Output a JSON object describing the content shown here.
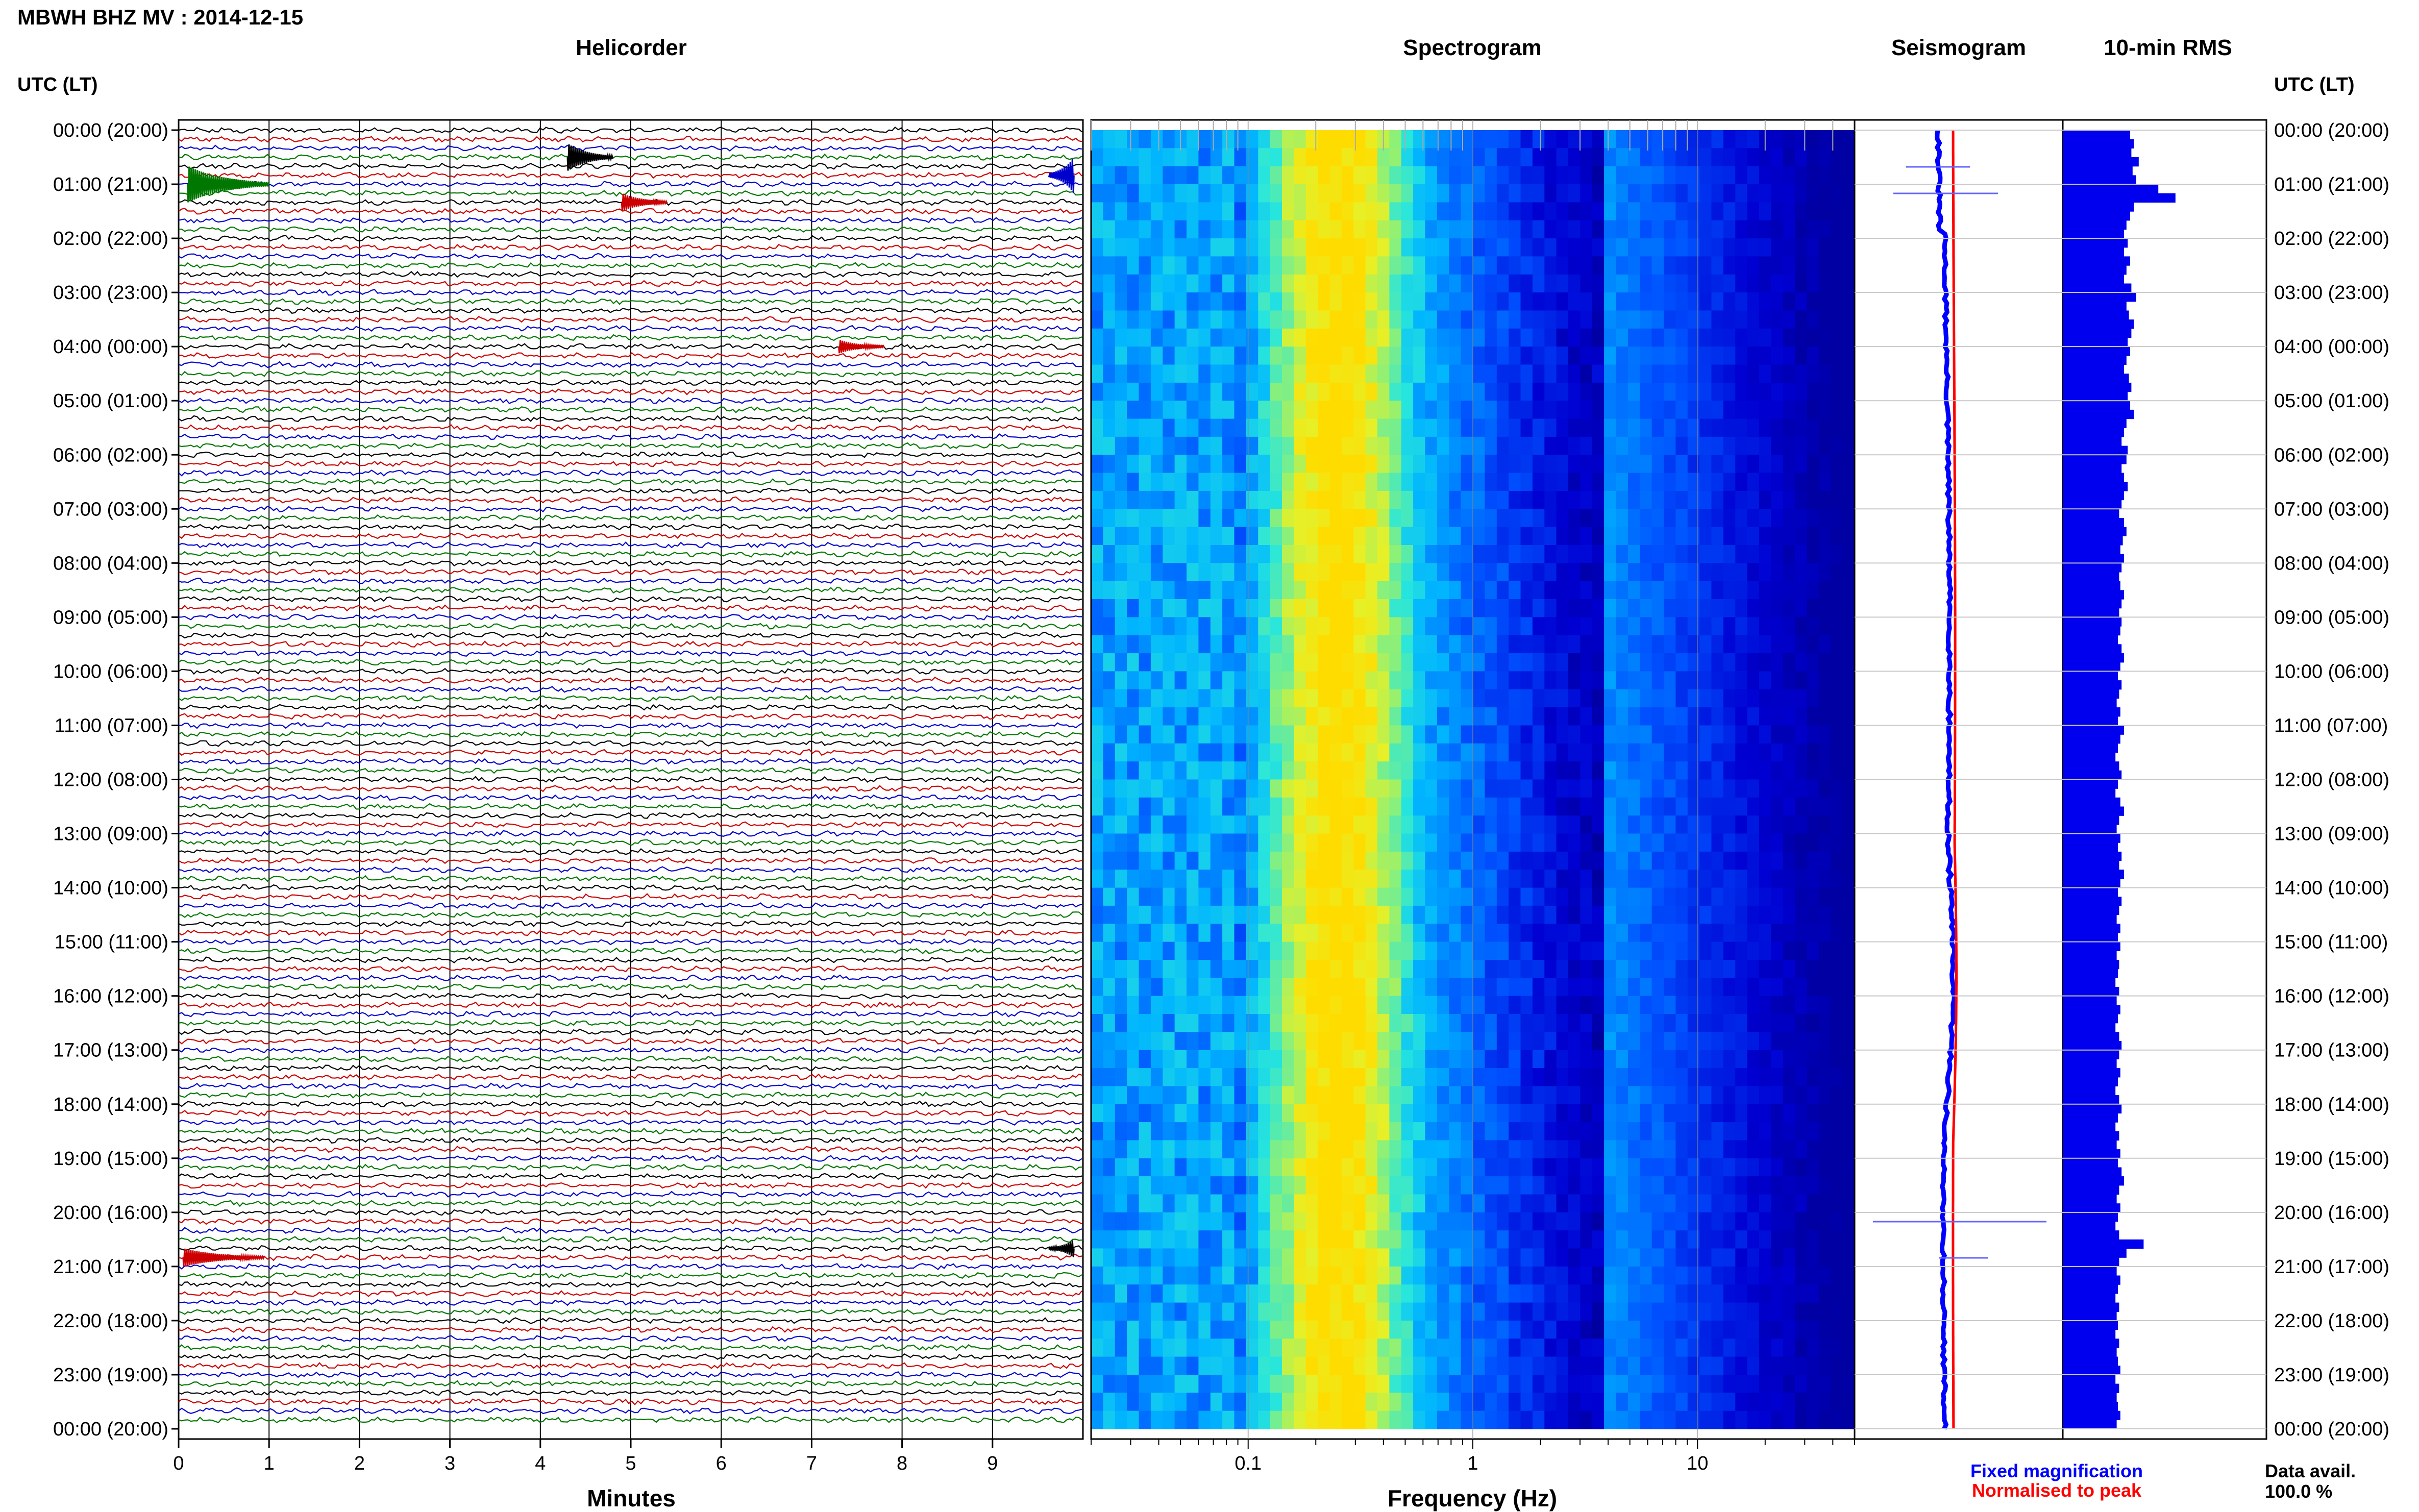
{
  "header": {
    "title": "MBWH BHZ MV : 2014-12-15",
    "utc_label_left": "UTC (LT)",
    "utc_label_right": "UTC (LT)"
  },
  "panels": {
    "helicorder": "Helicorder",
    "spectrogram": "Spectrogram",
    "seismogram": "Seismogram",
    "rms": "10-min RMS"
  },
  "hour_labels": [
    "00:00 (20:00)",
    "01:00 (21:00)",
    "02:00 (22:00)",
    "03:00 (23:00)",
    "04:00 (00:00)",
    "05:00 (01:00)",
    "06:00 (02:00)",
    "07:00 (03:00)",
    "08:00 (04:00)",
    "09:00 (05:00)",
    "10:00 (06:00)",
    "11:00 (07:00)",
    "12:00 (08:00)",
    "13:00 (09:00)",
    "14:00 (10:00)",
    "15:00 (11:00)",
    "16:00 (12:00)",
    "17:00 (13:00)",
    "18:00 (14:00)",
    "19:00 (15:00)",
    "20:00 (16:00)",
    "21:00 (17:00)",
    "22:00 (18:00)",
    "23:00 (19:00)",
    "00:00 (20:00)"
  ],
  "helicorder_axis": {
    "xlabel": "Minutes",
    "ticks": [
      "0",
      "1",
      "2",
      "3",
      "4",
      "5",
      "6",
      "7",
      "8",
      "9"
    ]
  },
  "spectrogram_axis": {
    "xlabel": "Frequency (Hz)",
    "ticks": [
      "0.1",
      "1",
      "10"
    ]
  },
  "legend": {
    "fixed": "Fixed magnification",
    "normalised": "Normalised to peak",
    "fixed_color": "#0000ff",
    "normalised_color": "#ff0000"
  },
  "data_avail": {
    "label": "Data avail.",
    "value": "100.0 %"
  },
  "colors": {
    "trace_cycle": [
      "#000000",
      "#cc0000",
      "#0000cc",
      "#007700"
    ],
    "rms_bar": "#0000ee",
    "grid": "#c8c8c8"
  },
  "chart_data": [
    {
      "type": "line",
      "name": "helicorder",
      "title": "Helicorder",
      "xlabel": "Minutes",
      "xlim": [
        0,
        10
      ],
      "rows": 144,
      "row_minutes": 10,
      "events": [
        {
          "row": 3,
          "minute": 4.3,
          "color": "#000000",
          "amp": 3
        },
        {
          "row": 6,
          "minute": 0.1,
          "color": "#007700",
          "amp": 4
        },
        {
          "row": 5,
          "minute": 9.9,
          "color": "#0000cc",
          "amp": 4
        },
        {
          "row": 8,
          "minute": 4.9,
          "color": "#cc0000",
          "amp": 2
        },
        {
          "row": 24,
          "minute": 7.3,
          "color": "#cc0000",
          "amp": 1.5
        },
        {
          "row": 125,
          "minute": 0.05,
          "color": "#cc0000",
          "amp": 2
        },
        {
          "row": 124,
          "minute": 9.9,
          "color": "#000000",
          "amp": 2
        }
      ]
    },
    {
      "type": "heatmap",
      "name": "spectrogram",
      "title": "Spectrogram",
      "xlabel": "Frequency (Hz)",
      "xscale": "log",
      "xlim": [
        0.02,
        50
      ],
      "peak_frequency_hz": 0.25
    },
    {
      "type": "line",
      "name": "seismogram",
      "title": "Seismogram",
      "series": [
        {
          "name": "Fixed magnification",
          "color": "#0000ff"
        },
        {
          "name": "Normalised to peak",
          "color": "#ff0000"
        }
      ]
    },
    {
      "type": "bar",
      "name": "rms",
      "title": "10-min RMS",
      "values": [
        0.55,
        0.58,
        0.56,
        0.62,
        0.57,
        0.6,
        0.78,
        0.92,
        0.58,
        0.55,
        0.52,
        0.5,
        0.53,
        0.5,
        0.55,
        0.52,
        0.5,
        0.56,
        0.6,
        0.52,
        0.54,
        0.58,
        0.56,
        0.53,
        0.55,
        0.52,
        0.5,
        0.54,
        0.56,
        0.53,
        0.55,
        0.58,
        0.52,
        0.5,
        0.48,
        0.53,
        0.52,
        0.48,
        0.5,
        0.53,
        0.5,
        0.48,
        0.46,
        0.5,
        0.52,
        0.49,
        0.47,
        0.5,
        0.48,
        0.46,
        0.47,
        0.5,
        0.48,
        0.46,
        0.48,
        0.47,
        0.45,
        0.48,
        0.5,
        0.47,
        0.45,
        0.48,
        0.46,
        0.44,
        0.47,
        0.45,
        0.5,
        0.47,
        0.45,
        0.43,
        0.46,
        0.48,
        0.45,
        0.43,
        0.47,
        0.5,
        0.46,
        0.44,
        0.47,
        0.45,
        0.48,
        0.46,
        0.5,
        0.47,
        0.45,
        0.48,
        0.46,
        0.44,
        0.47,
        0.45,
        0.47,
        0.44,
        0.46,
        0.45,
        0.43,
        0.46,
        0.44,
        0.47,
        0.45,
        0.43,
        0.46,
        0.48,
        0.46,
        0.44,
        0.47,
        0.45,
        0.43,
        0.46,
        0.48,
        0.45,
        0.43,
        0.46,
        0.44,
        0.47,
        0.45,
        0.48,
        0.5,
        0.46,
        0.44,
        0.47,
        0.45,
        0.43,
        0.46,
        0.66,
        0.52,
        0.46,
        0.44,
        0.47,
        0.45,
        0.43,
        0.46,
        0.44,
        0.45,
        0.43,
        0.46,
        0.44,
        0.45,
        0.47,
        0.43,
        0.46,
        0.44,
        0.45,
        0.47,
        0.44
      ]
    }
  ]
}
